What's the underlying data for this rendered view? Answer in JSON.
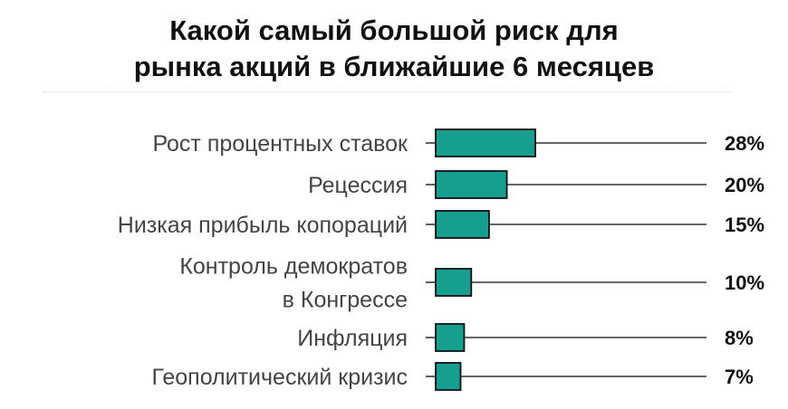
{
  "chart_data": {
    "type": "bar",
    "title_lines": [
      "Какой самый большой риск для",
      "рынка акций в ближайшие 6 месяцев"
    ],
    "categories": [
      [
        "Рост процентных ставок"
      ],
      [
        "Рецессия"
      ],
      [
        "Низкая прибыль копораций"
      ],
      [
        "Контроль демократов",
        "в Конгрессе"
      ],
      [
        "Инфляция"
      ],
      [
        "Геополитический кризис"
      ]
    ],
    "values": [
      28,
      20,
      15,
      10,
      8,
      7
    ],
    "value_labels": [
      "28%",
      "20%",
      "15%",
      "10%",
      "8%",
      "7%"
    ],
    "unit": "%",
    "orientation": "horizontal",
    "grid": false,
    "colors": {
      "bar_fill": "#169e8f",
      "bar_stroke": "#111111",
      "leader_line": "#333333"
    }
  }
}
